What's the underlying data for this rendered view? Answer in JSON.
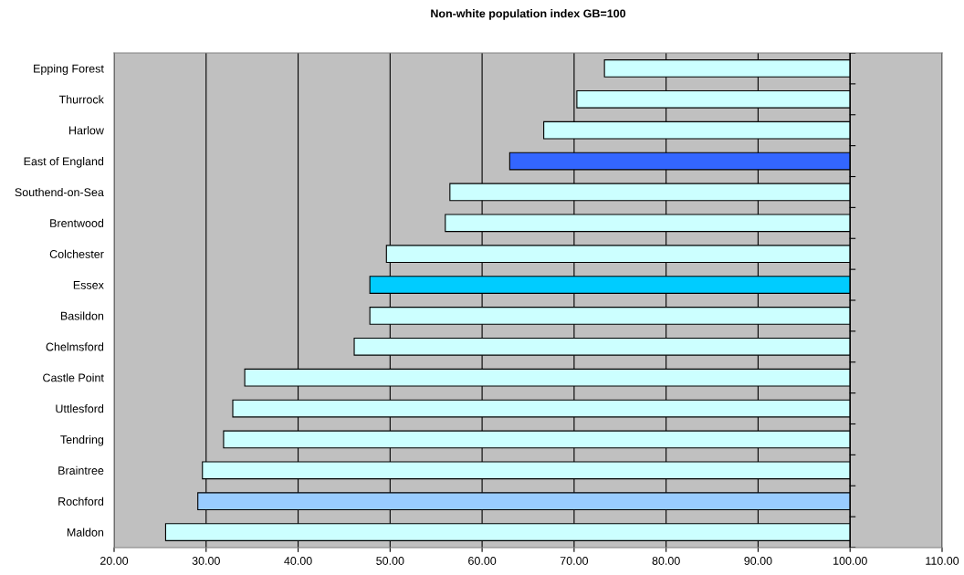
{
  "chart_data": {
    "type": "bar",
    "orientation": "horizontal",
    "title": "Non-white population index GB=100",
    "categories": [
      "Epping Forest",
      "Thurrock",
      "Harlow",
      "East of England",
      "Southend-on-Sea",
      "Brentwood",
      "Colchester",
      "Essex",
      "Basildon",
      "Chelmsford",
      "Castle Point",
      "Uttlesford",
      "Tendring",
      "Braintree",
      "Rochford",
      "Maldon"
    ],
    "base": [
      100,
      100,
      100,
      100,
      100,
      100,
      100,
      100,
      100,
      100,
      100,
      100,
      100,
      100,
      100,
      100
    ],
    "values": [
      -26.7,
      -29.7,
      -33.3,
      -37.0,
      -43.5,
      -44.0,
      -50.4,
      -52.2,
      -52.2,
      -53.9,
      -65.8,
      -67.1,
      -68.1,
      -70.4,
      -70.9,
      -74.4
    ],
    "colors": [
      "#ccffff",
      "#ccffff",
      "#ccffff",
      "#3366ff",
      "#ccffff",
      "#ccffff",
      "#ccffff",
      "#00ccff",
      "#ccffff",
      "#ccffff",
      "#ccffff",
      "#ccffff",
      "#ccffff",
      "#ccffff",
      "#99ccff",
      "#ccffff"
    ],
    "xlim": [
      20,
      110
    ],
    "xticks": [
      {
        "value": 20,
        "label": "20.00"
      },
      {
        "value": 30,
        "label": "30.00"
      },
      {
        "value": 40,
        "label": "40.00"
      },
      {
        "value": 50,
        "label": "50.00"
      },
      {
        "value": 60,
        "label": "60.00"
      },
      {
        "value": 70,
        "label": "70.00"
      },
      {
        "value": 80,
        "label": "80.00"
      },
      {
        "value": 90,
        "label": "90.00"
      },
      {
        "value": 100,
        "label": "100.00"
      },
      {
        "value": 110,
        "label": "110.00"
      }
    ],
    "ref_lines": [
      {
        "axis": "x",
        "value": 100,
        "color": "#000000"
      }
    ],
    "grid": "x"
  }
}
